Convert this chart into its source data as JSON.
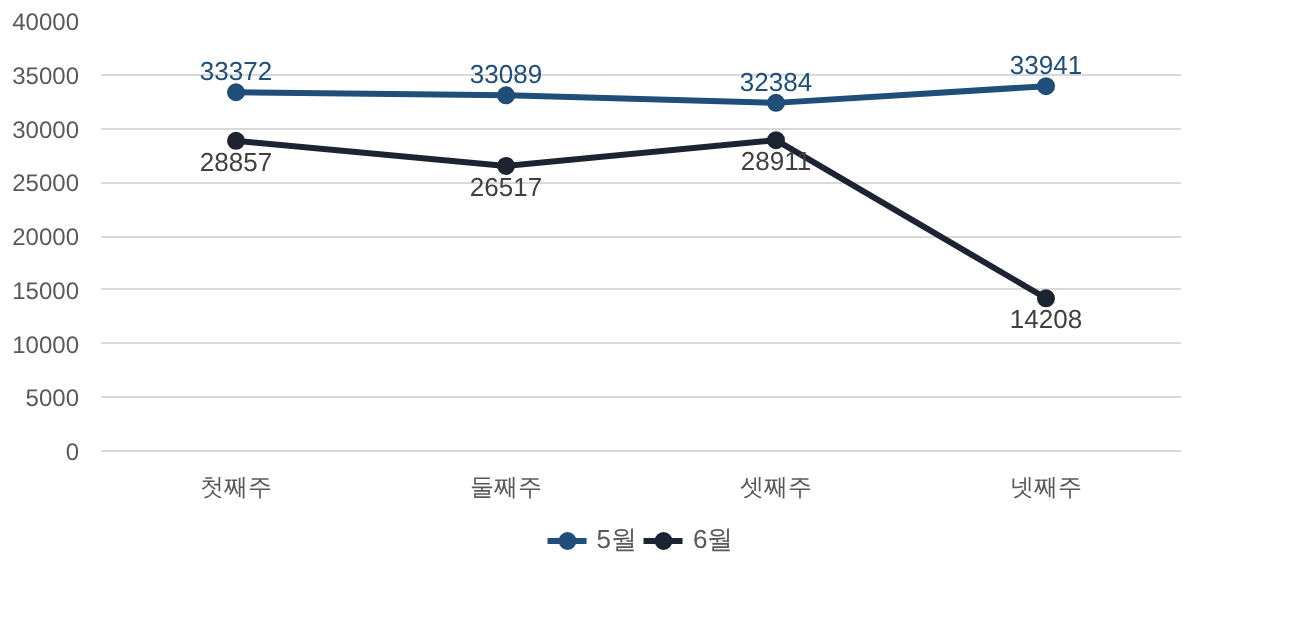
{
  "chart_data": {
    "type": "line",
    "categories": [
      "첫째주",
      "둘째주",
      "셋째주",
      "넷째주"
    ],
    "series": [
      {
        "name": "5월",
        "color": "#1f4e79",
        "values": [
          33372,
          33089,
          32384,
          33941
        ]
      },
      {
        "name": "6월",
        "color": "#1c2331",
        "values": [
          28857,
          26517,
          28911,
          14208
        ]
      }
    ],
    "ylim": [
      0,
      40000
    ],
    "yticks": [
      0,
      5000,
      10000,
      15000,
      20000,
      25000,
      30000,
      35000,
      40000
    ],
    "grid": "y",
    "legend": "bottom",
    "marker": "circle",
    "line_style": "solid",
    "data_labels": true
  }
}
